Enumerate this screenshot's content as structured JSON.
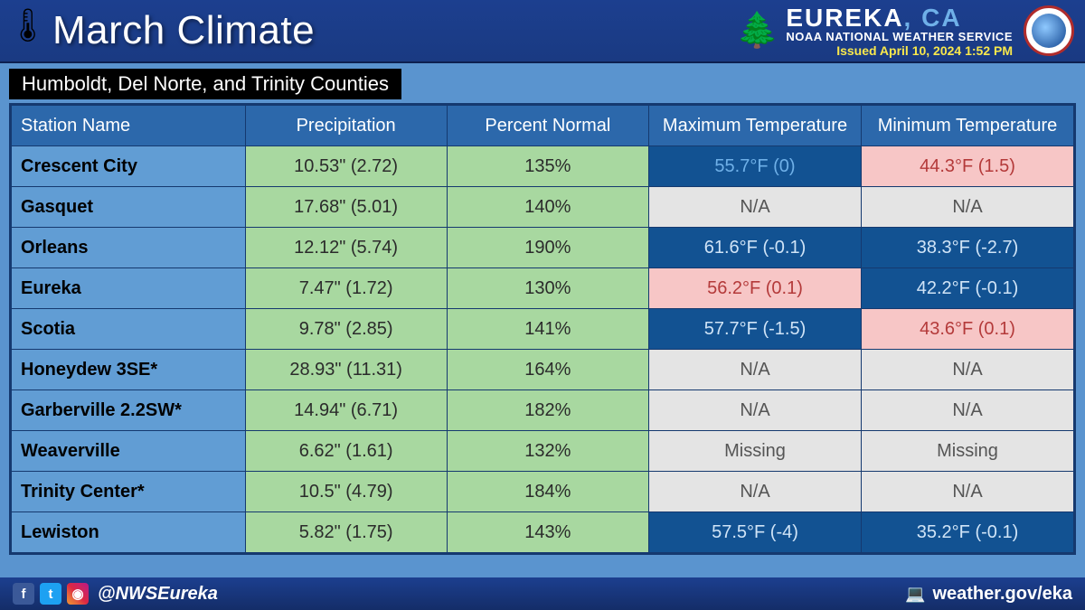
{
  "header": {
    "title": "March Climate",
    "city": "EUREKA",
    "state": ", CA",
    "agency": "NOAA NATIONAL WEATHER SERVICE",
    "issued": "Issued April 10, 2024 1:52 PM"
  },
  "subhead": "Humboldt, Del Norte, and Trinity Counties",
  "columns": {
    "name": "Station Name",
    "precip": "Precipitation",
    "pct": "Percent Normal",
    "max": "Maximum Temperature",
    "min": "Minimum Temperature"
  },
  "rows": [
    {
      "name": "Crescent City",
      "precip": {
        "v": "10.53\" (2.72)",
        "c": "bg-green"
      },
      "pct": {
        "v": "135%",
        "c": "bg-green"
      },
      "max": {
        "v": "55.7°F (0)",
        "c": "bg-darkblue"
      },
      "min": {
        "v": "44.3°F (1.5)",
        "c": "bg-pink"
      }
    },
    {
      "name": "Gasquet",
      "precip": {
        "v": "17.68\" (5.01)",
        "c": "bg-green"
      },
      "pct": {
        "v": "140%",
        "c": "bg-green"
      },
      "max": {
        "v": "N/A",
        "c": "bg-grey"
      },
      "min": {
        "v": "N/A",
        "c": "bg-grey"
      }
    },
    {
      "name": "Orleans",
      "precip": {
        "v": "12.12\" (5.74)",
        "c": "bg-green"
      },
      "pct": {
        "v": "190%",
        "c": "bg-green"
      },
      "max": {
        "v": "61.6°F (-0.1)",
        "c": "bg-darkblue2"
      },
      "min": {
        "v": "38.3°F (-2.7)",
        "c": "bg-darkblue2"
      }
    },
    {
      "name": "Eureka",
      "precip": {
        "v": "7.47\" (1.72)",
        "c": "bg-green"
      },
      "pct": {
        "v": "130%",
        "c": "bg-green"
      },
      "max": {
        "v": "56.2°F (0.1)",
        "c": "bg-pink"
      },
      "min": {
        "v": "42.2°F (-0.1)",
        "c": "bg-darkblue2"
      }
    },
    {
      "name": "Scotia",
      "precip": {
        "v": "9.78\" (2.85)",
        "c": "bg-green"
      },
      "pct": {
        "v": "141%",
        "c": "bg-green"
      },
      "max": {
        "v": "57.7°F (-1.5)",
        "c": "bg-darkblue2"
      },
      "min": {
        "v": "43.6°F (0.1)",
        "c": "bg-pink"
      }
    },
    {
      "name": "Honeydew 3SE*",
      "precip": {
        "v": "28.93\" (11.31)",
        "c": "bg-green"
      },
      "pct": {
        "v": "164%",
        "c": "bg-green"
      },
      "max": {
        "v": "N/A",
        "c": "bg-grey"
      },
      "min": {
        "v": "N/A",
        "c": "bg-grey"
      }
    },
    {
      "name": "Garberville 2.2SW*",
      "precip": {
        "v": "14.94\" (6.71)",
        "c": "bg-green"
      },
      "pct": {
        "v": "182%",
        "c": "bg-green"
      },
      "max": {
        "v": "N/A",
        "c": "bg-grey"
      },
      "min": {
        "v": "N/A",
        "c": "bg-grey"
      }
    },
    {
      "name": "Weaverville",
      "precip": {
        "v": "6.62\" (1.61)",
        "c": "bg-green"
      },
      "pct": {
        "v": "132%",
        "c": "bg-green"
      },
      "max": {
        "v": "Missing",
        "c": "bg-grey"
      },
      "min": {
        "v": "Missing",
        "c": "bg-grey"
      }
    },
    {
      "name": "Trinity Center*",
      "precip": {
        "v": "10.5\" (4.79)",
        "c": "bg-green"
      },
      "pct": {
        "v": "184%",
        "c": "bg-green"
      },
      "max": {
        "v": "N/A",
        "c": "bg-grey"
      },
      "min": {
        "v": "N/A",
        "c": "bg-grey"
      }
    },
    {
      "name": "Lewiston",
      "precip": {
        "v": "5.82\" (1.75)",
        "c": "bg-green"
      },
      "pct": {
        "v": "143%",
        "c": "bg-green"
      },
      "max": {
        "v": "57.5°F (-4)",
        "c": "bg-darkblue2"
      },
      "min": {
        "v": "35.2°F (-0.1)",
        "c": "bg-darkblue2"
      }
    }
  ],
  "footer": {
    "handle": "@NWSEureka",
    "url": "weather.gov/eka",
    "fb": "f",
    "tw": "t",
    "ig": "ig"
  }
}
